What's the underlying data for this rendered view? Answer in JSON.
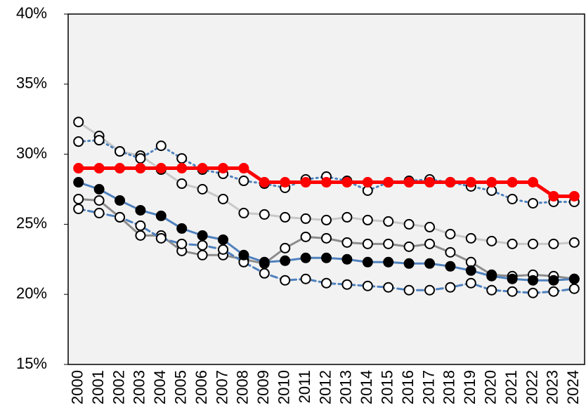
{
  "chart_data": {
    "type": "line",
    "categories": [
      "2000",
      "2001",
      "2002",
      "2003",
      "2004",
      "2005",
      "2006",
      "2007",
      "2008",
      "2009",
      "2010",
      "2011",
      "2012",
      "2013",
      "2014",
      "2015",
      "2016",
      "2017",
      "2018",
      "2019",
      "2020",
      "2021",
      "2022",
      "2023",
      "2024"
    ],
    "ylim": [
      15,
      40
    ],
    "yticks": [
      {
        "value": 15,
        "label": "15%"
      },
      {
        "value": 20,
        "label": "20%"
      },
      {
        "value": 25,
        "label": "25%"
      },
      {
        "value": 30,
        "label": "30%"
      },
      {
        "value": 35,
        "label": "35%"
      },
      {
        "value": 40,
        "label": "40%"
      }
    ],
    "grid": false,
    "background": "#f2f2f2",
    "series": [
      {
        "color": "#c8c8c8",
        "style": "solid",
        "marker": "hollow",
        "values": [
          32.3,
          31.3,
          30.2,
          29.9,
          28.9,
          27.9,
          27.5,
          26.8,
          25.8,
          25.7,
          25.5,
          25.4,
          25.3,
          25.5,
          25.3,
          25.2,
          25.0,
          24.8,
          24.3,
          24.0,
          23.8,
          23.6,
          23.6,
          23.6,
          23.7
        ]
      },
      {
        "color": "#8c8c8c",
        "style": "solid",
        "marker": "hollow",
        "values": [
          26.8,
          26.7,
          25.5,
          24.2,
          24.2,
          23.1,
          22.8,
          22.8,
          22.5,
          22.2,
          23.3,
          24.1,
          24.0,
          23.7,
          23.6,
          23.6,
          23.4,
          23.6,
          23.0,
          22.3,
          21.4,
          21.3,
          21.4,
          21.3,
          21.1
        ]
      },
      {
        "color": "#4f81bd",
        "style": "dotted",
        "marker": "hollow",
        "values": [
          30.9,
          31.0,
          30.2,
          29.7,
          30.6,
          29.7,
          28.9,
          28.6,
          28.1,
          27.9,
          27.6,
          28.2,
          28.4,
          28.1,
          27.4,
          28.0,
          28.1,
          28.2,
          28.0,
          27.7,
          27.4,
          26.8,
          26.5,
          26.6,
          26.6
        ]
      },
      {
        "color": "#4f81bd",
        "style": "dashed",
        "marker": "hollow",
        "values": [
          26.1,
          25.8,
          25.5,
          24.9,
          24.0,
          23.6,
          23.5,
          23.2,
          22.3,
          21.5,
          21.0,
          21.1,
          20.8,
          20.7,
          20.6,
          20.5,
          20.3,
          20.3,
          20.5,
          20.8,
          20.3,
          20.2,
          20.1,
          20.2,
          20.4
        ]
      },
      {
        "color": "#4f81bd",
        "style": "solid",
        "marker": "filled",
        "marker_color": "#000000",
        "values": [
          28.0,
          27.5,
          26.7,
          26.0,
          25.6,
          24.7,
          24.2,
          23.9,
          22.8,
          22.3,
          22.4,
          22.6,
          22.6,
          22.5,
          22.3,
          22.3,
          22.2,
          22.2,
          22.0,
          21.7,
          21.3,
          21.1,
          21.0,
          21.0,
          21.1
        ]
      },
      {
        "color": "#ff0000",
        "style": "solid",
        "marker": "filled",
        "marker_color": "#ff0000",
        "width": 5,
        "values": [
          29,
          29,
          29,
          29,
          29,
          29,
          29,
          29,
          29,
          28,
          28,
          28,
          28,
          28,
          28,
          28,
          28,
          28,
          28,
          28,
          28,
          28,
          28,
          27,
          27
        ]
      }
    ]
  }
}
